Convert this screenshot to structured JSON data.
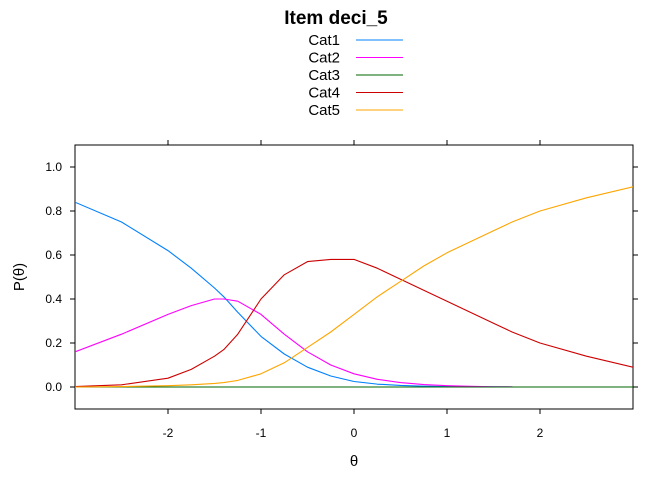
{
  "chart_data": {
    "type": "line",
    "title": "Item deci_5",
    "xlabel": "θ",
    "ylabel": "P(θ)",
    "xlim": [
      -3,
      3
    ],
    "ylim": [
      -0.1,
      1.1
    ],
    "xticks": [
      -2,
      -1,
      0,
      1,
      2
    ],
    "xtick_labels": [
      "-2",
      "-1",
      "0",
      "1",
      "2"
    ],
    "yticks": [
      0.0,
      0.2,
      0.4,
      0.6,
      0.8,
      1.0
    ],
    "ytick_labels": [
      "0.0",
      "0.2",
      "0.4",
      "0.6",
      "0.8",
      "1.0"
    ],
    "grid": false,
    "legend_position": "top-center",
    "x": [
      -3.0,
      -2.5,
      -2.0,
      -1.75,
      -1.5,
      -1.4,
      -1.25,
      -1.0,
      -0.75,
      -0.5,
      -0.25,
      0.0,
      0.25,
      0.5,
      0.75,
      1.0,
      1.25,
      1.5,
      1.7,
      2.0,
      2.5,
      3.0
    ],
    "series": [
      {
        "name": "Cat1",
        "color": "#0080ff",
        "values": [
          0.84,
          0.75,
          0.62,
          0.54,
          0.45,
          0.41,
          0.34,
          0.23,
          0.15,
          0.09,
          0.05,
          0.025,
          0.013,
          0.007,
          0.004,
          0.002,
          0.001,
          0.001,
          0.0,
          0.0,
          0.0,
          0.0
        ]
      },
      {
        "name": "Cat2",
        "color": "#ff00ff",
        "values": [
          0.16,
          0.24,
          0.33,
          0.37,
          0.4,
          0.4,
          0.39,
          0.33,
          0.24,
          0.16,
          0.1,
          0.06,
          0.035,
          0.02,
          0.011,
          0.006,
          0.003,
          0.001,
          0.001,
          null,
          null,
          null
        ]
      },
      {
        "name": "Cat3",
        "color": "#006400",
        "values": [
          0.0,
          0.0,
          0.0,
          0.0,
          0.0,
          0.0,
          0.0,
          0.0,
          0.0,
          0.0,
          0.0,
          0.0,
          0.0,
          0.0,
          0.0,
          0.0,
          0.0,
          0.0,
          0.0,
          0.0,
          0.0,
          0.0
        ]
      },
      {
        "name": "Cat4",
        "color": "#cc0000",
        "values": [
          0.002,
          0.01,
          0.04,
          0.08,
          0.14,
          0.17,
          0.24,
          0.4,
          0.51,
          0.57,
          0.58,
          0.58,
          0.54,
          0.49,
          0.44,
          0.39,
          0.34,
          0.29,
          0.25,
          0.2,
          0.14,
          0.09
        ]
      },
      {
        "name": "Cat5",
        "color": "#ffa500",
        "values": [
          0.0,
          0.002,
          0.006,
          0.01,
          0.016,
          0.02,
          0.03,
          0.06,
          0.11,
          0.18,
          0.25,
          0.33,
          0.41,
          0.48,
          0.55,
          0.61,
          0.66,
          0.71,
          0.75,
          0.8,
          0.86,
          0.91
        ]
      }
    ]
  }
}
